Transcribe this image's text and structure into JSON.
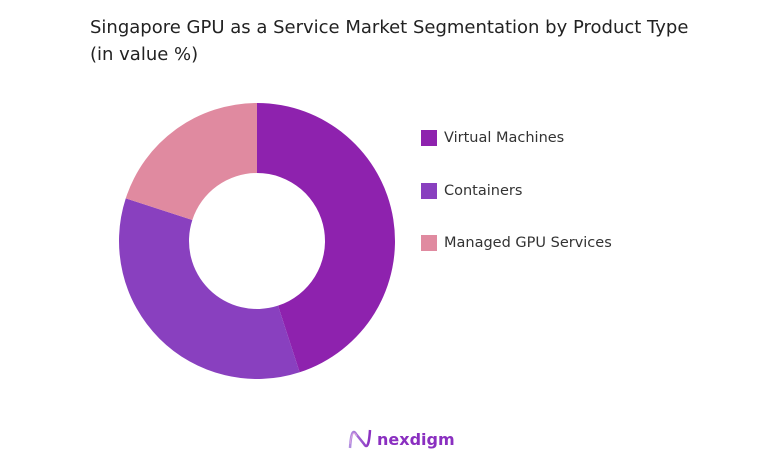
{
  "chart_data": {
    "type": "pie",
    "title": "Singapore GPU as a Service Market Segmentation by Product Type (in value %)",
    "categories": [
      "Virtual Machines",
      "Containers",
      "Managed GPU Services"
    ],
    "values": [
      45,
      35,
      20
    ],
    "colors": [
      "#8e22ae",
      "#8940bf",
      "#e08aa0"
    ],
    "donut": true,
    "legend_placement": "right"
  },
  "brand": {
    "logo_text": "nexdigm"
  }
}
